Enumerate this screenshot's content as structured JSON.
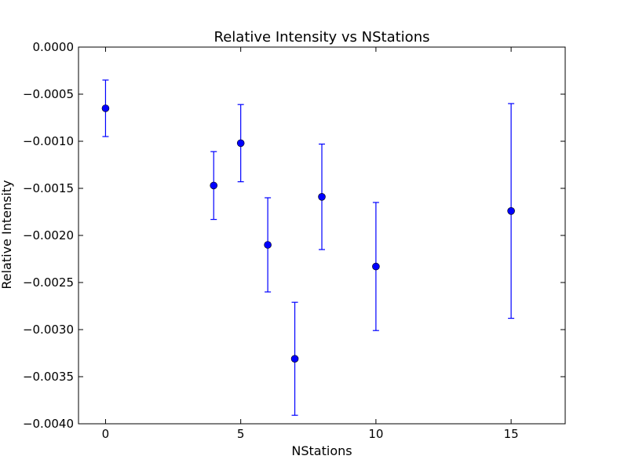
{
  "chart_data": {
    "type": "scatter",
    "title": "Relative Intensity vs NStations",
    "xlabel": "NStations",
    "ylabel": "Relative Intensity",
    "xlim": [
      -1,
      17
    ],
    "ylim": [
      -0.004,
      0.0
    ],
    "xticks": [
      0,
      5,
      10,
      15
    ],
    "xtick_labels": [
      "0",
      "5",
      "10",
      "15"
    ],
    "yticks": [
      0.0,
      -0.0005,
      -0.001,
      -0.0015,
      -0.002,
      -0.0025,
      -0.003,
      -0.0035,
      -0.004
    ],
    "ytick_labels": [
      "0.0000",
      "−0.0005",
      "−0.0010",
      "−0.0015",
      "−0.0020",
      "−0.0025",
      "−0.0030",
      "−0.0035",
      "−0.0040"
    ],
    "grid": false,
    "series": [
      {
        "color": "#0000ff",
        "marker": "circle",
        "points": [
          {
            "x": 0,
            "y": -0.00065,
            "err": 0.0003
          },
          {
            "x": 4,
            "y": -0.00147,
            "err": 0.00036
          },
          {
            "x": 5,
            "y": -0.00102,
            "err": 0.00041
          },
          {
            "x": 6,
            "y": -0.0021,
            "err": 0.0005
          },
          {
            "x": 7,
            "y": -0.00331,
            "err": 0.0006
          },
          {
            "x": 8,
            "y": -0.00159,
            "err": 0.00056
          },
          {
            "x": 10,
            "y": -0.00233,
            "err": 0.00068
          },
          {
            "x": 15,
            "y": -0.00174,
            "err": 0.00114
          }
        ]
      }
    ]
  }
}
